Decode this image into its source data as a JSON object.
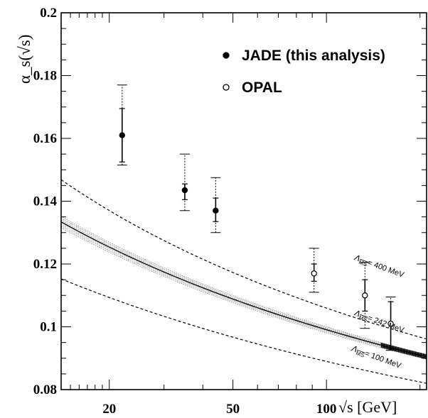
{
  "chart_data": {
    "type": "scatter",
    "ylabel": "α_s(√s)",
    "xlabel": "√s [GeV]",
    "xscale": "log",
    "xlim": [
      14,
      210
    ],
    "ylim": [
      0.08,
      0.2
    ],
    "x_ticks": [
      20,
      50,
      100
    ],
    "y_ticks": [
      0.08,
      0.1,
      0.12,
      0.14,
      0.16,
      0.18,
      0.2
    ],
    "y_tick_labels": [
      "0.08",
      "0.1",
      "0.12",
      "0.14",
      "0.16",
      "0.18",
      "0.2"
    ],
    "legend_position": "top-right",
    "series": [
      {
        "name": "JADE (this analysis)",
        "marker": "filled-circle",
        "points": [
          {
            "x": 22,
            "y": 0.161,
            "stat": [
              0.1525,
              0.1695
            ],
            "total": [
              0.1515,
              0.177
            ]
          },
          {
            "x": 35,
            "y": 0.1435,
            "stat": [
              0.1405,
              0.1455
            ],
            "total": [
              0.137,
              0.155
            ]
          },
          {
            "x": 44,
            "y": 0.137,
            "stat": [
              0.1335,
              0.141
            ],
            "total": [
              0.13,
              0.1475
            ]
          }
        ]
      },
      {
        "name": "OPAL",
        "marker": "open-circle",
        "points": [
          {
            "x": 91.2,
            "y": 0.117,
            "stat": [
              0.1145,
              0.12
            ],
            "total": [
              0.111,
              0.125
            ]
          },
          {
            "x": 133,
            "y": 0.11,
            "stat": [
              0.105,
              0.115
            ],
            "total": [
              0.0995,
              0.1205
            ]
          },
          {
            "x": 161,
            "y": 0.101,
            "stat": [
              0.093,
              0.108
            ],
            "total": [
              0.0925,
              0.1095
            ]
          }
        ]
      }
    ],
    "curves": [
      {
        "label": "= 400 MeV",
        "lambda_label": "Λ",
        "lambda_sub": "MS",
        "style": "dashed",
        "lambda_mev": 400
      },
      {
        "label": "= 242 MeV",
        "lambda_label": "Λ",
        "lambda_sub": "MS",
        "style": "solid-band",
        "lambda_mev": 242
      },
      {
        "label": "= 100 MeV",
        "lambda_label": "Λ",
        "lambda_sub": "MS",
        "style": "dashed",
        "lambda_mev": 100
      }
    ]
  }
}
